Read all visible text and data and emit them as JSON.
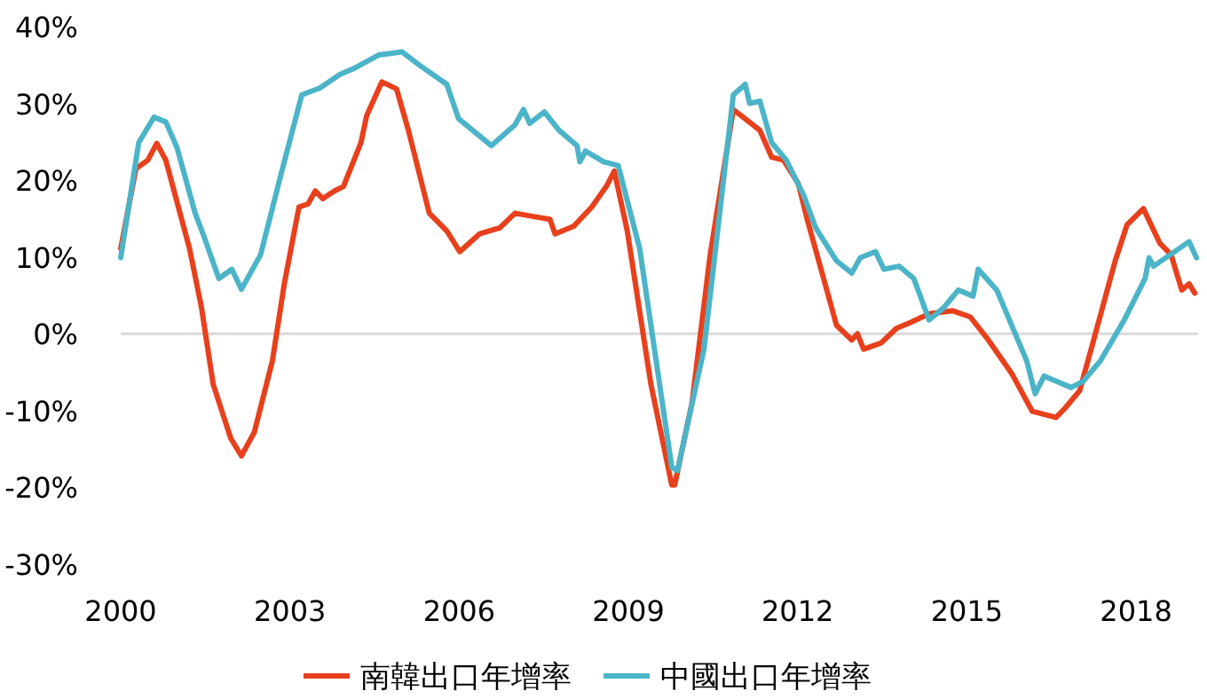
{
  "chart_data": {
    "type": "line",
    "xlim": [
      2000,
      2019.1
    ],
    "xticks": [
      2000,
      2003,
      2006,
      2009,
      2012,
      2015,
      2018
    ],
    "ylim": [
      -30,
      40
    ],
    "yticks": [
      {
        "value": -30,
        "label": "-30%"
      },
      {
        "value": -20,
        "label": "-20%"
      },
      {
        "value": -10,
        "label": "-10%"
      },
      {
        "value": 0,
        "label": "0%"
      },
      {
        "value": 10,
        "label": "10%"
      },
      {
        "value": 20,
        "label": "20%"
      },
      {
        "value": 30,
        "label": "30%"
      },
      {
        "value": 40,
        "label": "40%"
      }
    ],
    "grid": false,
    "legend": "bottom",
    "ref_lines": [
      {
        "axis": "y",
        "value": 0,
        "color": "#d9d9d9"
      }
    ],
    "series": [
      {
        "name": "南韓出口年增率",
        "color": "#e8401c",
        "x": [
          2000.0,
          2000.27,
          2000.48,
          2000.64,
          2000.8,
          2001.22,
          2001.43,
          2001.64,
          2001.95,
          2002.14,
          2002.37,
          2002.69,
          2002.9,
          2003.16,
          2003.32,
          2003.45,
          2003.58,
          2003.79,
          2003.95,
          2004.26,
          2004.36,
          2004.63,
          2004.89,
          2005.1,
          2005.47,
          2005.78,
          2006.01,
          2006.36,
          2006.72,
          2006.99,
          2007.3,
          2007.61,
          2007.7,
          2008.03,
          2008.35,
          2008.61,
          2008.75,
          2008.98,
          2009.4,
          2009.77,
          2009.82,
          2010.13,
          2010.45,
          2010.86,
          2011.07,
          2011.33,
          2011.54,
          2011.75,
          2012.01,
          2012.17,
          2012.43,
          2012.69,
          2012.96,
          2013.06,
          2013.17,
          2013.48,
          2013.75,
          2014.01,
          2014.33,
          2014.75,
          2015.06,
          2015.38,
          2015.79,
          2016.16,
          2016.58,
          2016.74,
          2017.0,
          2017.26,
          2017.63,
          2017.84,
          2018.13,
          2018.42,
          2018.62,
          2018.81,
          2018.94,
          2019.04
        ],
        "values": [
          11.1,
          21.5,
          22.6,
          24.8,
          22.6,
          11.1,
          3.5,
          -6.6,
          -13.6,
          -15.9,
          -12.8,
          -3.5,
          6.5,
          16.5,
          16.9,
          18.6,
          17.6,
          18.6,
          19.2,
          24.9,
          28.4,
          32.8,
          31.9,
          26.5,
          15.7,
          13.4,
          10.7,
          13.0,
          13.8,
          15.7,
          15.3,
          14.9,
          13.0,
          14.0,
          16.5,
          19.2,
          21.2,
          13.4,
          -6.6,
          -19.7,
          -19.7,
          -8.9,
          10.3,
          29.2,
          28.0,
          26.5,
          23.0,
          22.6,
          19.6,
          14.9,
          8.0,
          1.1,
          -0.8,
          0,
          -2.0,
          -1.2,
          0.7,
          1.5,
          2.6,
          3.0,
          2.2,
          -0.8,
          -5.1,
          -10.1,
          -10.9,
          -9.7,
          -7.4,
          -0.5,
          9.5,
          14.2,
          16.3,
          11.8,
          10.3,
          5.7,
          6.5,
          5.3
        ]
      },
      {
        "name": "中國出口年增率",
        "color": "#4bb4c8",
        "x": [
          2000.0,
          2000.32,
          2000.59,
          2000.8,
          2001.0,
          2001.32,
          2001.48,
          2001.74,
          2001.97,
          2002.14,
          2002.48,
          2002.84,
          2003.21,
          2003.53,
          2003.89,
          2004.15,
          2004.57,
          2004.99,
          2005.31,
          2005.78,
          2005.99,
          2006.57,
          2006.99,
          2007.14,
          2007.25,
          2007.51,
          2007.77,
          2008.09,
          2008.14,
          2008.24,
          2008.56,
          2008.82,
          2009.2,
          2009.77,
          2009.87,
          2010.34,
          2010.86,
          2011.07,
          2011.15,
          2011.33,
          2011.54,
          2011.8,
          2012.11,
          2012.32,
          2012.69,
          2012.96,
          2013.11,
          2013.38,
          2013.53,
          2013.8,
          2014.06,
          2014.33,
          2014.59,
          2014.85,
          2015.11,
          2015.2,
          2015.53,
          2016.06,
          2016.21,
          2016.37,
          2016.85,
          2017.06,
          2017.37,
          2017.79,
          2018.16,
          2018.23,
          2018.31,
          2018.94,
          2019.07
        ],
        "values": [
          9.9,
          24.9,
          28.2,
          27.6,
          24.2,
          15.7,
          12.6,
          7.2,
          8.4,
          5.8,
          10.3,
          20.7,
          31.1,
          32.0,
          33.8,
          34.6,
          36.3,
          36.7,
          34.9,
          32.5,
          28.0,
          24.5,
          27.2,
          29.2,
          27.4,
          28.9,
          26.5,
          24.5,
          22.4,
          23.8,
          22.4,
          21.9,
          11.1,
          -17.4,
          -17.8,
          -2.0,
          31.1,
          32.5,
          30.0,
          30.3,
          24.9,
          22.6,
          18.0,
          13.8,
          9.5,
          7.9,
          9.9,
          10.7,
          8.4,
          8.8,
          7.2,
          1.8,
          3.4,
          5.7,
          4.9,
          8.4,
          5.7,
          -3.5,
          -7.8,
          -5.5,
          -7.0,
          -6.2,
          -3.5,
          1.8,
          7.2,
          9.9,
          8.8,
          12.0,
          9.9
        ]
      }
    ]
  }
}
